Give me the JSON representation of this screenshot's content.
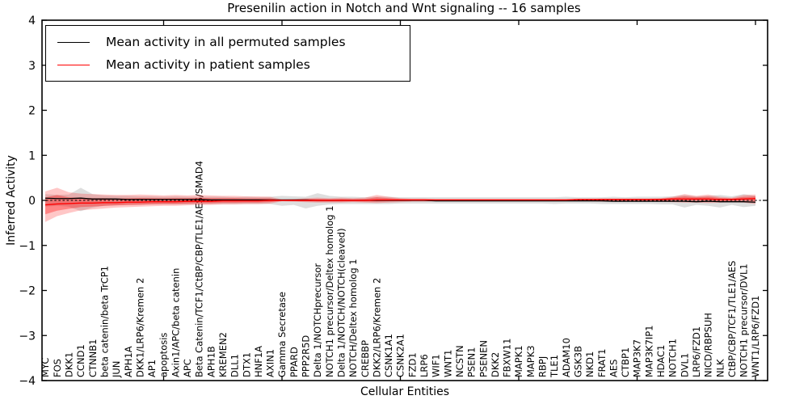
{
  "chart_data": {
    "type": "line",
    "title": "Presenilin action in Notch and Wnt signaling -- 16 samples",
    "xlabel": "Cellular Entities",
    "ylabel": "Inferred Activity",
    "ylim": [
      -4,
      4
    ],
    "yticks": [
      -4,
      -3,
      -2,
      -1,
      0,
      1,
      2,
      3,
      4
    ],
    "grid": false,
    "legend_position": "upper left",
    "zero_line": {
      "y": 0,
      "style": "dashed",
      "color": "#000000"
    },
    "band_colors": {
      "permuted": "rgba(0,0,0,0.13)",
      "patient_outer": "rgba(255,0,0,0.22)",
      "patient_inner": "rgba(255,0,0,0.33)"
    },
    "categories": [
      "MYC",
      "FOS",
      "DKK1",
      "CCND1",
      "CTNNB1",
      "beta catenin/beta TrCP1",
      "JUN",
      "APH1A",
      "DKK1/LRP6/Kremen 2",
      "AP1",
      "apoptosis",
      "Axin1/APC/beta catenin",
      "APC",
      "Beta Catenin/TCF1/CtBP/CBP/TLE1/AES/SMAD4",
      "APH1B",
      "KREMEN2",
      "DLL1",
      "DTX1",
      "HNF1A",
      "AXIN1",
      "Gamma Secretase",
      "PPARD",
      "PPP2R5D",
      "Delta 1/NOTCHprecursor",
      "NOTCH1 precursor/Deltex homolog 1",
      "Delta 1/NOTCH/NOTCH(cleaved)",
      "NOTCH/Deltex homolog 1",
      "CREBBP",
      "DKK2/LRP6/Kremen 2",
      "CSNK1A1",
      "CSNK2A1",
      "FZD1",
      "LRP6",
      "WIF1",
      "WNT1",
      "NCSTN",
      "PSEN1",
      "PSENEN",
      "DKK2",
      "FBXW11",
      "MAPK1",
      "MAPK3",
      "RBPJ",
      "TLE1",
      "ADAM10",
      "GSK3B",
      "NKD1",
      "FRAT1",
      "AES",
      "CTBP1",
      "MAP3K7",
      "MAP3K7IP1",
      "HDAC1",
      "NOTCH1",
      "DVL1",
      "LRP6/FZD1",
      "NICD/RBPSUH",
      "NLK",
      "CtBP/CBP/TCF1/TLE1/AES",
      "NOTCH1 precursor/DVL1",
      "WNT1/LRP6/FZD1"
    ],
    "series": [
      {
        "name": "Mean activity in all permuted samples",
        "color": "#000000",
        "values": [
          0.05,
          0.04,
          0.04,
          0.05,
          0.03,
          0.03,
          0.03,
          0.02,
          0.02,
          0.02,
          0.02,
          0.02,
          0.02,
          0.02,
          0.01,
          0.01,
          0.01,
          0.01,
          0.01,
          0.01,
          0.01,
          0.01,
          0.01,
          0.0,
          0.0,
          0.0,
          0.0,
          0.0,
          0.0,
          0.0,
          0.0,
          0.0,
          0.0,
          -0.01,
          -0.01,
          -0.01,
          -0.01,
          -0.01,
          -0.01,
          -0.01,
          -0.01,
          -0.01,
          -0.01,
          -0.01,
          -0.01,
          -0.01,
          -0.01,
          -0.01,
          -0.02,
          -0.02,
          -0.02,
          -0.02,
          -0.02,
          -0.02,
          -0.02,
          -0.03,
          -0.02,
          -0.03,
          -0.03,
          -0.03,
          -0.04
        ],
        "band_upper": [
          0.14,
          0.12,
          0.13,
          0.28,
          0.14,
          0.11,
          0.1,
          0.1,
          0.09,
          0.09,
          0.08,
          0.09,
          0.08,
          0.08,
          0.08,
          0.08,
          0.07,
          0.08,
          0.07,
          0.08,
          0.1,
          0.09,
          0.08,
          0.16,
          0.1,
          0.08,
          0.08,
          0.07,
          0.08,
          0.08,
          0.07,
          0.07,
          0.07,
          0.07,
          0.07,
          0.07,
          0.07,
          0.07,
          0.07,
          0.07,
          0.07,
          0.07,
          0.07,
          0.07,
          0.08,
          0.07,
          0.07,
          0.07,
          0.08,
          0.07,
          0.08,
          0.08,
          0.08,
          0.09,
          0.12,
          0.09,
          0.1,
          0.12,
          0.09,
          0.14,
          0.1
        ],
        "band_lower": [
          -0.14,
          -0.12,
          -0.14,
          -0.24,
          -0.16,
          -0.12,
          -0.11,
          -0.1,
          -0.1,
          -0.09,
          -0.09,
          -0.09,
          -0.09,
          -0.08,
          -0.08,
          -0.08,
          -0.08,
          -0.08,
          -0.08,
          -0.08,
          -0.12,
          -0.1,
          -0.18,
          -0.12,
          -0.09,
          -0.08,
          -0.08,
          -0.08,
          -0.08,
          -0.08,
          -0.07,
          -0.07,
          -0.07,
          -0.07,
          -0.07,
          -0.07,
          -0.07,
          -0.07,
          -0.07,
          -0.07,
          -0.07,
          -0.07,
          -0.07,
          -0.08,
          -0.07,
          -0.07,
          -0.07,
          -0.08,
          -0.08,
          -0.08,
          -0.08,
          -0.08,
          -0.09,
          -0.09,
          -0.16,
          -0.1,
          -0.12,
          -0.16,
          -0.1,
          -0.15,
          -0.12
        ]
      },
      {
        "name": "Mean activity in patient samples",
        "color": "#ff0000",
        "values": [
          -0.1,
          -0.08,
          -0.07,
          -0.06,
          -0.06,
          -0.05,
          -0.05,
          -0.04,
          -0.04,
          -0.03,
          -0.03,
          -0.03,
          -0.02,
          -0.02,
          -0.02,
          -0.01,
          -0.01,
          -0.01,
          -0.01,
          0.0,
          0.0,
          0.0,
          0.0,
          0.0,
          0.0,
          0.0,
          0.0,
          0.0,
          0.01,
          0.01,
          0.01,
          0.01,
          0.01,
          0.01,
          0.01,
          0.01,
          0.01,
          0.01,
          0.01,
          0.01,
          0.01,
          0.01,
          0.01,
          0.01,
          0.01,
          0.02,
          0.02,
          0.02,
          0.02,
          0.02,
          0.02,
          0.02,
          0.02,
          0.03,
          0.03,
          0.03,
          0.03,
          0.02,
          0.02,
          0.03,
          0.04
        ],
        "band_upper": [
          0.2,
          0.28,
          0.18,
          0.15,
          0.14,
          0.13,
          0.12,
          0.12,
          0.13,
          0.12,
          0.11,
          0.12,
          0.11,
          0.12,
          0.11,
          0.1,
          0.1,
          0.09,
          0.09,
          0.08,
          0.02,
          0.03,
          0.05,
          0.06,
          0.05,
          0.06,
          0.05,
          0.06,
          0.12,
          0.08,
          0.05,
          0.04,
          0.04,
          0.03,
          0.03,
          0.03,
          0.03,
          0.03,
          0.03,
          0.03,
          0.03,
          0.03,
          0.03,
          0.03,
          0.03,
          0.03,
          0.03,
          0.04,
          0.04,
          0.04,
          0.04,
          0.04,
          0.05,
          0.08,
          0.14,
          0.1,
          0.13,
          0.08,
          0.06,
          0.12,
          0.13
        ],
        "band_lower": [
          -0.48,
          -0.35,
          -0.28,
          -0.22,
          -0.2,
          -0.18,
          -0.16,
          -0.15,
          -0.14,
          -0.13,
          -0.12,
          -0.12,
          -0.11,
          -0.1,
          -0.1,
          -0.09,
          -0.09,
          -0.08,
          -0.08,
          -0.07,
          -0.02,
          -0.03,
          -0.04,
          -0.05,
          -0.05,
          -0.05,
          -0.04,
          -0.05,
          -0.06,
          -0.05,
          -0.04,
          -0.03,
          -0.03,
          -0.02,
          -0.02,
          -0.02,
          -0.02,
          -0.02,
          -0.02,
          -0.02,
          -0.02,
          -0.02,
          -0.02,
          -0.02,
          -0.02,
          -0.02,
          -0.02,
          -0.03,
          -0.03,
          -0.03,
          -0.03,
          -0.03,
          -0.03,
          -0.04,
          -0.05,
          -0.05,
          -0.06,
          -0.05,
          -0.04,
          -0.05,
          -0.08
        ]
      }
    ]
  }
}
